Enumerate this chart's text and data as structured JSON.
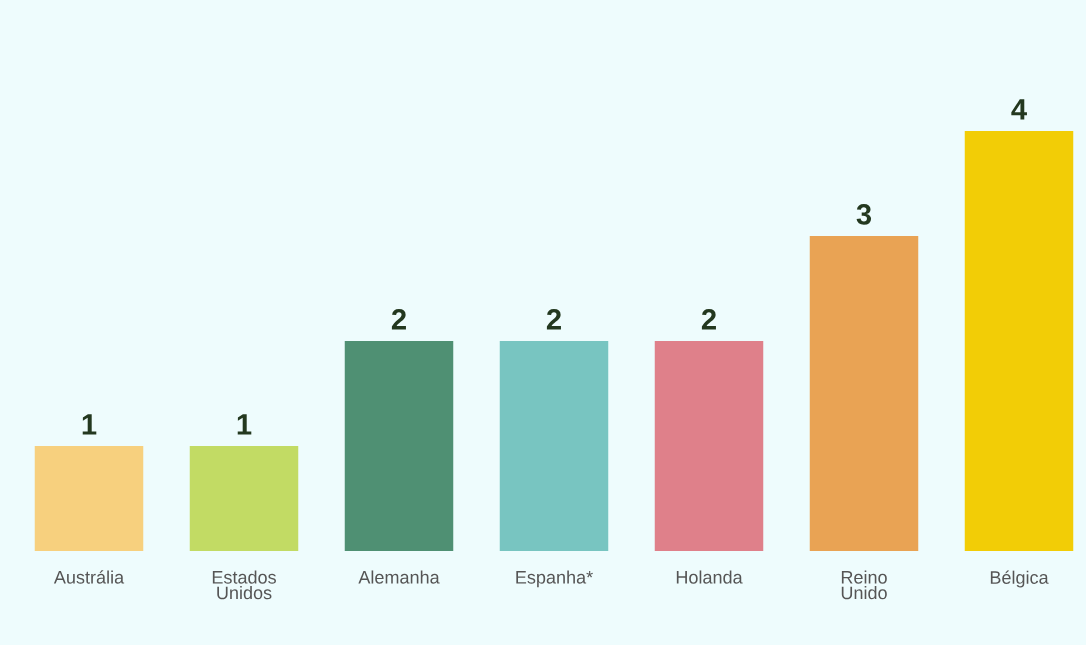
{
  "chart_data": {
    "type": "bar",
    "categories": [
      "Austrália",
      "Estados Unidos",
      "Alemanha",
      "Espanha*",
      "Holanda",
      "Reino Unido",
      "Bélgica"
    ],
    "values": [
      1,
      1,
      2,
      2,
      2,
      3,
      4
    ],
    "colors": [
      "#f7d07e",
      "#c2db64",
      "#4f9073",
      "#78c5c1",
      "#df808a",
      "#e9a354",
      "#f2cd06"
    ],
    "data_labels": true,
    "grid": false,
    "legend": false
  }
}
